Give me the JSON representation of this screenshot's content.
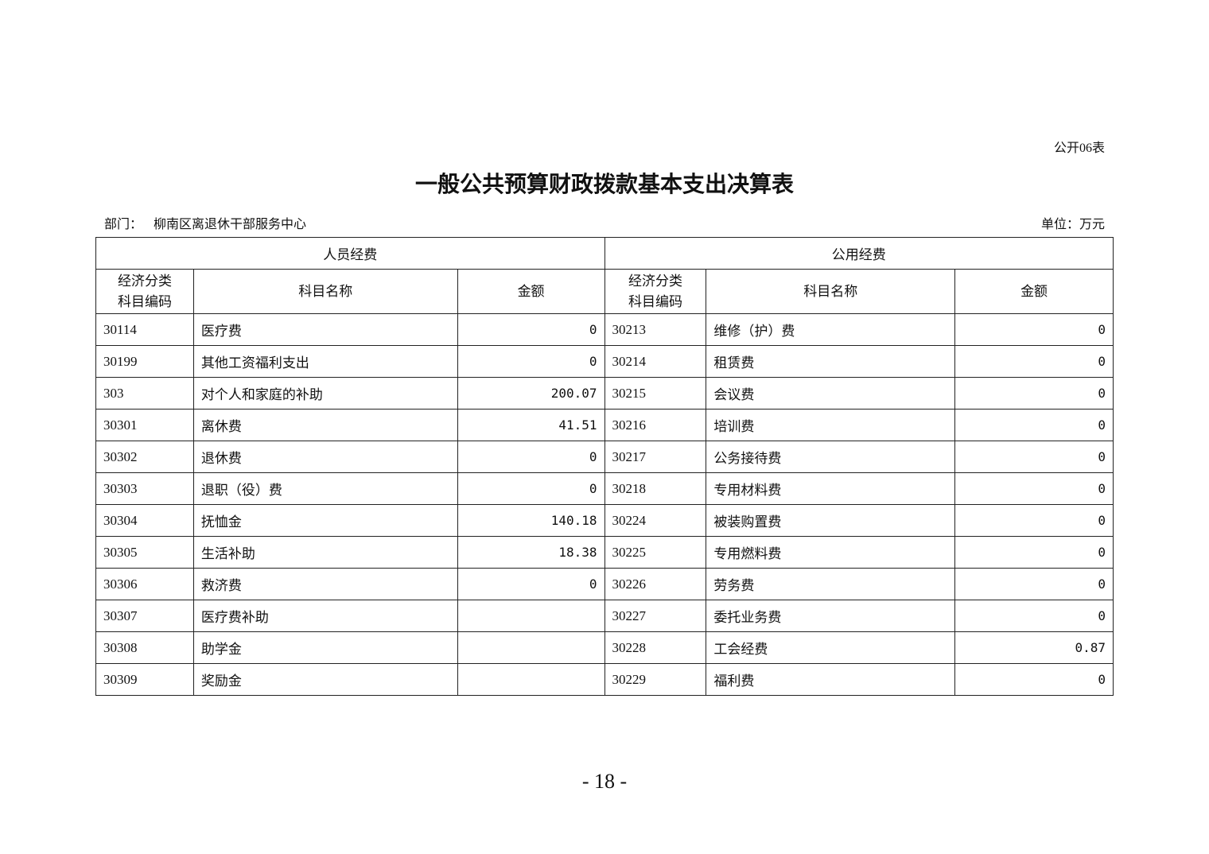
{
  "form_no": "公开06表",
  "title": "一般公共预算财政拨款基本支出决算表",
  "dept_label": "部门：",
  "dept_name": "柳南区离退休干部服务中心",
  "unit": "单位：万元",
  "table": {
    "group_headers": [
      "人员经费",
      "公用经费"
    ],
    "column_headers": [
      "经济分类\n科目编码",
      "科目名称",
      "金额",
      "经济分类\n科目编码",
      "科目名称",
      "金额"
    ],
    "rows": [
      [
        "30114",
        "医疗费",
        "0",
        "30213",
        "维修（护）费",
        "0"
      ],
      [
        "30199",
        "其他工资福利支出",
        "0",
        "30214",
        "租赁费",
        "0"
      ],
      [
        "303",
        "对个人和家庭的补助",
        "200.07",
        "30215",
        "会议费",
        "0"
      ],
      [
        "30301",
        "离休费",
        "41.51",
        "30216",
        "培训费",
        "0"
      ],
      [
        "30302",
        "退休费",
        "0",
        "30217",
        "公务接待费",
        "0"
      ],
      [
        "30303",
        "退职（役）费",
        "0",
        "30218",
        "专用材料费",
        "0"
      ],
      [
        "30304",
        "抚恤金",
        "140.18",
        "30224",
        "被装购置费",
        "0"
      ],
      [
        "30305",
        "生活补助",
        "18.38",
        "30225",
        "专用燃料费",
        "0"
      ],
      [
        "30306",
        "救济费",
        "0",
        "30226",
        "劳务费",
        "0"
      ],
      [
        "30307",
        "医疗费补助",
        "",
        "30227",
        "委托业务费",
        "0"
      ],
      [
        "30308",
        "助学金",
        "",
        "30228",
        "工会经费",
        "0.87"
      ],
      [
        "30309",
        "奖励金",
        "",
        "30229",
        "福利费",
        "0"
      ]
    ]
  },
  "page_number": "- 18 -"
}
